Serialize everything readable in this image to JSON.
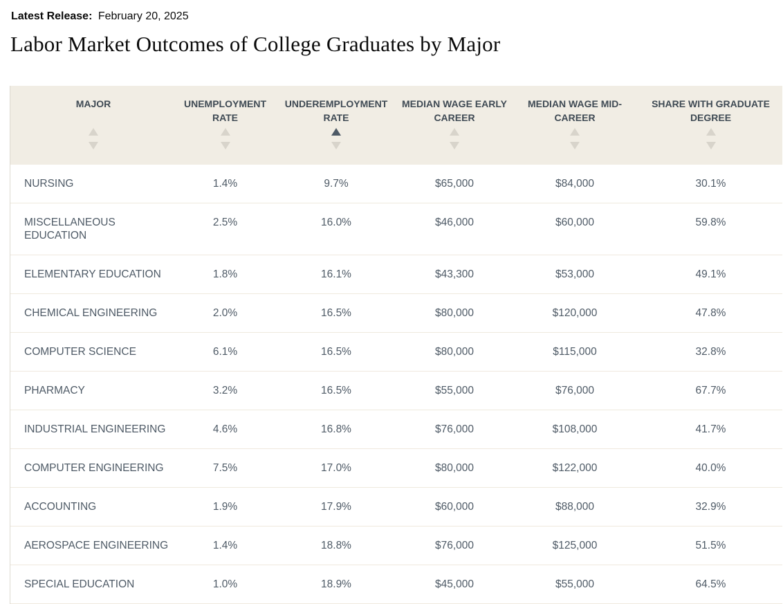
{
  "page": {
    "latest_release_label": "Latest Release:",
    "latest_release_date": "February 20, 2025",
    "title": "Labor Market Outcomes of College Graduates by Major"
  },
  "colors": {
    "header_bg": "#f1ede4",
    "header_text": "#3f4a54",
    "cell_text": "#4e5a66",
    "row_divider": "#efe9de",
    "table_border": "#ddd9d0",
    "sort_active": "#4e5a66",
    "sort_inactive": "#d8d4cb"
  },
  "table": {
    "columns": [
      {
        "id": "major",
        "label": "MAJOR",
        "sort": "none",
        "align": "left"
      },
      {
        "id": "unemployment-rate",
        "label": "UNEMPLOYMENT RATE",
        "sort": "none",
        "align": "center"
      },
      {
        "id": "underemployment-rate",
        "label": "UNDEREMPLOYMENT RATE",
        "sort": "asc",
        "align": "center"
      },
      {
        "id": "median-wage-early-career",
        "label": "MEDIAN WAGE EARLY CAREER",
        "sort": "none",
        "align": "center"
      },
      {
        "id": "median-wage-mid-career",
        "label": "MEDIAN WAGE MID-CAREER",
        "sort": "none",
        "align": "center"
      },
      {
        "id": "share-with-graduate-degree",
        "label": "SHARE WITH GRADUATE DEGREE",
        "sort": "none",
        "align": "center"
      }
    ],
    "rows": [
      [
        "NURSING",
        "1.4%",
        "9.7%",
        "$65,000",
        "$84,000",
        "30.1%"
      ],
      [
        "MISCELLANEOUS EDUCATION",
        "2.5%",
        "16.0%",
        "$46,000",
        "$60,000",
        "59.8%"
      ],
      [
        "ELEMENTARY EDUCATION",
        "1.8%",
        "16.1%",
        "$43,300",
        "$53,000",
        "49.1%"
      ],
      [
        "CHEMICAL ENGINEERING",
        "2.0%",
        "16.5%",
        "$80,000",
        "$120,000",
        "47.8%"
      ],
      [
        "COMPUTER SCIENCE",
        "6.1%",
        "16.5%",
        "$80,000",
        "$115,000",
        "32.8%"
      ],
      [
        "PHARMACY",
        "3.2%",
        "16.5%",
        "$55,000",
        "$76,000",
        "67.7%"
      ],
      [
        "INDUSTRIAL ENGINEERING",
        "4.6%",
        "16.8%",
        "$76,000",
        "$108,000",
        "41.7%"
      ],
      [
        "COMPUTER ENGINEERING",
        "7.5%",
        "17.0%",
        "$80,000",
        "$122,000",
        "40.0%"
      ],
      [
        "ACCOUNTING",
        "1.9%",
        "17.9%",
        "$60,000",
        "$88,000",
        "32.9%"
      ],
      [
        "AEROSPACE ENGINEERING",
        "1.4%",
        "18.8%",
        "$76,000",
        "$125,000",
        "51.5%"
      ],
      [
        "SPECIAL EDUCATION",
        "1.0%",
        "18.9%",
        "$45,000",
        "$55,000",
        "64.5%"
      ]
    ]
  }
}
